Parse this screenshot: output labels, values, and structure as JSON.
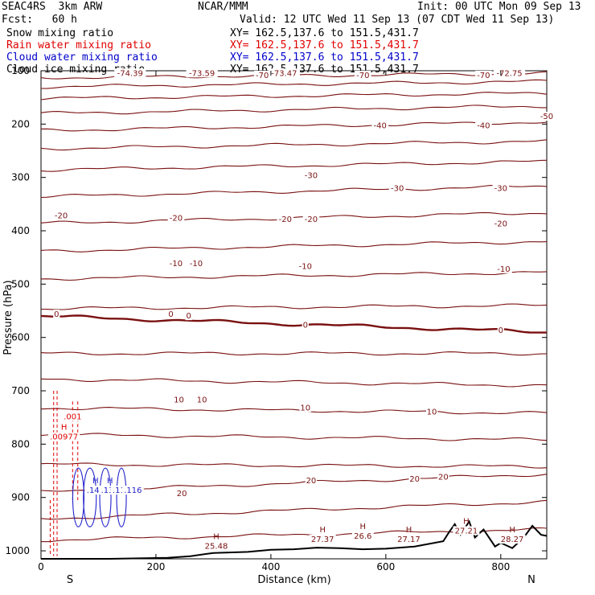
{
  "header": {
    "model": "SEAC4RS  3km ARW",
    "center": "NCAR/MMM",
    "init": "Init: 00 UTC Mon 09 Sep 13",
    "fcst": "Fcst:   60 h",
    "valid": "Valid: 12 UTC Wed 11 Sep 13 (07 CDT Wed 11 Sep 13)"
  },
  "legend": [
    {
      "label": "Snow mixing ratio",
      "xy": "XY= 162.5,137.6 to 151.5,431.7",
      "color": "#000000"
    },
    {
      "label": "Rain water mixing ratio",
      "xy": "XY= 162.5,137.6 to 151.5,431.7",
      "color": "#e00000"
    },
    {
      "label": "Cloud water mixing ratio",
      "xy": "XY= 162.5,137.6 to 151.5,431.7",
      "color": "#0000cc"
    },
    {
      "label": "Cloud ice mixing ratio",
      "xy": "XY= 162.5,137.6 to 151.5,431.7",
      "color": "#000000"
    }
  ],
  "colors": {
    "temperature": "#7a1010",
    "zero_isotherm": "#7a1010",
    "terrain": "#000000",
    "rain": "#e00000",
    "cloud": "#2222cc",
    "snow": "#000000"
  },
  "chart_data": {
    "type": "cross-section contour",
    "xlabel": "Distance (km)",
    "ylabel": "Pressure (hPa)",
    "xlim": [
      0,
      880
    ],
    "ylim": [
      1015,
      100
    ],
    "x_ticks": [
      "0",
      "200",
      "400",
      "600",
      "800"
    ],
    "x_tick_values": [
      0,
      200,
      400,
      600,
      800
    ],
    "y_ticks": [
      "100",
      "200",
      "300",
      "400",
      "500",
      "600",
      "700",
      "800",
      "900",
      "1000"
    ],
    "y_tick_values": [
      100,
      200,
      300,
      400,
      500,
      600,
      700,
      800,
      900,
      1000
    ],
    "end_labels": {
      "left": "S",
      "right": "N"
    },
    "isotherms": [
      {
        "p_start": 113,
        "p_end": 105
      },
      {
        "p_start": 130,
        "p_end": 120
      },
      {
        "p_start": 152,
        "p_end": 142
      },
      {
        "p_start": 180,
        "p_end": 166
      },
      {
        "p_start": 212,
        "p_end": 196
      },
      {
        "p_start": 246,
        "p_end": 232
      },
      {
        "p_start": 286,
        "p_end": 270
      },
      {
        "p_start": 336,
        "p_end": 316
      },
      {
        "p_start": 386,
        "p_end": 366
      },
      {
        "p_start": 438,
        "p_end": 420
      },
      {
        "p_start": 490,
        "p_end": 478
      },
      {
        "p_start": 546,
        "p_end": 540
      },
      {
        "p_start": 560,
        "p_end": 590,
        "bold": true
      },
      {
        "p_start": 630,
        "p_end": 630
      },
      {
        "p_start": 678,
        "p_end": 690
      },
      {
        "p_start": 732,
        "p_end": 742
      },
      {
        "p_start": 782,
        "p_end": 792
      },
      {
        "p_start": 838,
        "p_end": 842
      },
      {
        "p_start": 890,
        "p_end": 856
      },
      {
        "p_start": 940,
        "p_end": 908
      },
      {
        "p_start": 980,
        "p_end": 960
      }
    ],
    "contour_labels": [
      {
        "text": "-74.39",
        "x": 155,
        "p": 108
      },
      {
        "text": "-73.59",
        "x": 280,
        "p": 108
      },
      {
        "text": "-70",
        "x": 385,
        "p": 112
      },
      {
        "text": "-73.47",
        "x": 423,
        "p": 108
      },
      {
        "text": "-70",
        "x": 560,
        "p": 112
      },
      {
        "text": "-70",
        "x": 770,
        "p": 112
      },
      {
        "text": "-72.75",
        "x": 815,
        "p": 108
      },
      {
        "text": "-50",
        "x": 880,
        "p": 189
      },
      {
        "text": "-40",
        "x": 590,
        "p": 206
      },
      {
        "text": "-40",
        "x": 770,
        "p": 206
      },
      {
        "text": "-30",
        "x": 470,
        "p": 300
      },
      {
        "text": "-30",
        "x": 620,
        "p": 324
      },
      {
        "text": "-30",
        "x": 800,
        "p": 324
      },
      {
        "text": "-20",
        "x": 35,
        "p": 375
      },
      {
        "text": "-20",
        "x": 235,
        "p": 380
      },
      {
        "text": "-20",
        "x": 425,
        "p": 382
      },
      {
        "text": "-20",
        "x": 470,
        "p": 382
      },
      {
        "text": "-20",
        "x": 800,
        "p": 390
      },
      {
        "text": "-10",
        "x": 235,
        "p": 465
      },
      {
        "text": "-10",
        "x": 270,
        "p": 465
      },
      {
        "text": "-10",
        "x": 460,
        "p": 470
      },
      {
        "text": "-10",
        "x": 805,
        "p": 475
      },
      {
        "text": "0",
        "x": 27,
        "p": 560
      },
      {
        "text": "0",
        "x": 226,
        "p": 560
      },
      {
        "text": "0",
        "x": 257,
        "p": 563
      },
      {
        "text": "0",
        "x": 460,
        "p": 580
      },
      {
        "text": "0",
        "x": 800,
        "p": 590
      },
      {
        "text": "10",
        "x": 240,
        "p": 720
      },
      {
        "text": "10",
        "x": 280,
        "p": 720
      },
      {
        "text": "10",
        "x": 460,
        "p": 735
      },
      {
        "text": "10",
        "x": 680,
        "p": 743
      },
      {
        "text": "20",
        "x": 245,
        "p": 896
      },
      {
        "text": "20",
        "x": 470,
        "p": 872
      },
      {
        "text": "20",
        "x": 650,
        "p": 869
      },
      {
        "text": "20",
        "x": 700,
        "p": 865
      }
    ],
    "extrema": [
      {
        "mark": "H",
        "text": "25.48",
        "x": 305,
        "p": 995
      },
      {
        "mark": "H",
        "text": "27.37",
        "x": 490,
        "p": 982
      },
      {
        "mark": "H",
        "text": "26.6",
        "x": 560,
        "p": 976
      },
      {
        "mark": "H",
        "text": "27.17",
        "x": 640,
        "p": 982
      },
      {
        "mark": "H",
        "text": "27.21",
        "x": 740,
        "p": 966
      },
      {
        "mark": "H",
        "text": "28.27",
        "x": 820,
        "p": 982
      }
    ],
    "rain_labels": [
      {
        "text": ".001",
        "x": 55,
        "p": 752
      },
      {
        "mark": "H",
        "text": ".00977",
        "x": 40,
        "p": 790
      }
    ],
    "cloud_labels": [
      {
        "mark": "H",
        "text": ".144",
        "x": 95,
        "p": 890
      },
      {
        "mark": "H",
        "text": ".135",
        "x": 120,
        "p": 890
      },
      {
        "text": ".118",
        "x": 140,
        "p": 890
      },
      {
        "text": ".116",
        "x": 160,
        "p": 890
      }
    ],
    "terrain": [
      [
        0,
        1015
      ],
      [
        120,
        1015
      ],
      [
        220,
        1013
      ],
      [
        260,
        1010
      ],
      [
        300,
        1004
      ],
      [
        360,
        1002
      ],
      [
        400,
        998
      ],
      [
        440,
        997
      ],
      [
        480,
        994
      ],
      [
        520,
        995
      ],
      [
        560,
        997
      ],
      [
        600,
        996
      ],
      [
        650,
        992
      ],
      [
        700,
        982
      ],
      [
        710,
        965
      ],
      [
        720,
        950
      ],
      [
        730,
        970
      ],
      [
        745,
        945
      ],
      [
        755,
        975
      ],
      [
        770,
        960
      ],
      [
        790,
        992
      ],
      [
        800,
        985
      ],
      [
        820,
        995
      ],
      [
        840,
        975
      ],
      [
        855,
        953
      ],
      [
        870,
        970
      ],
      [
        880,
        972
      ]
    ]
  }
}
